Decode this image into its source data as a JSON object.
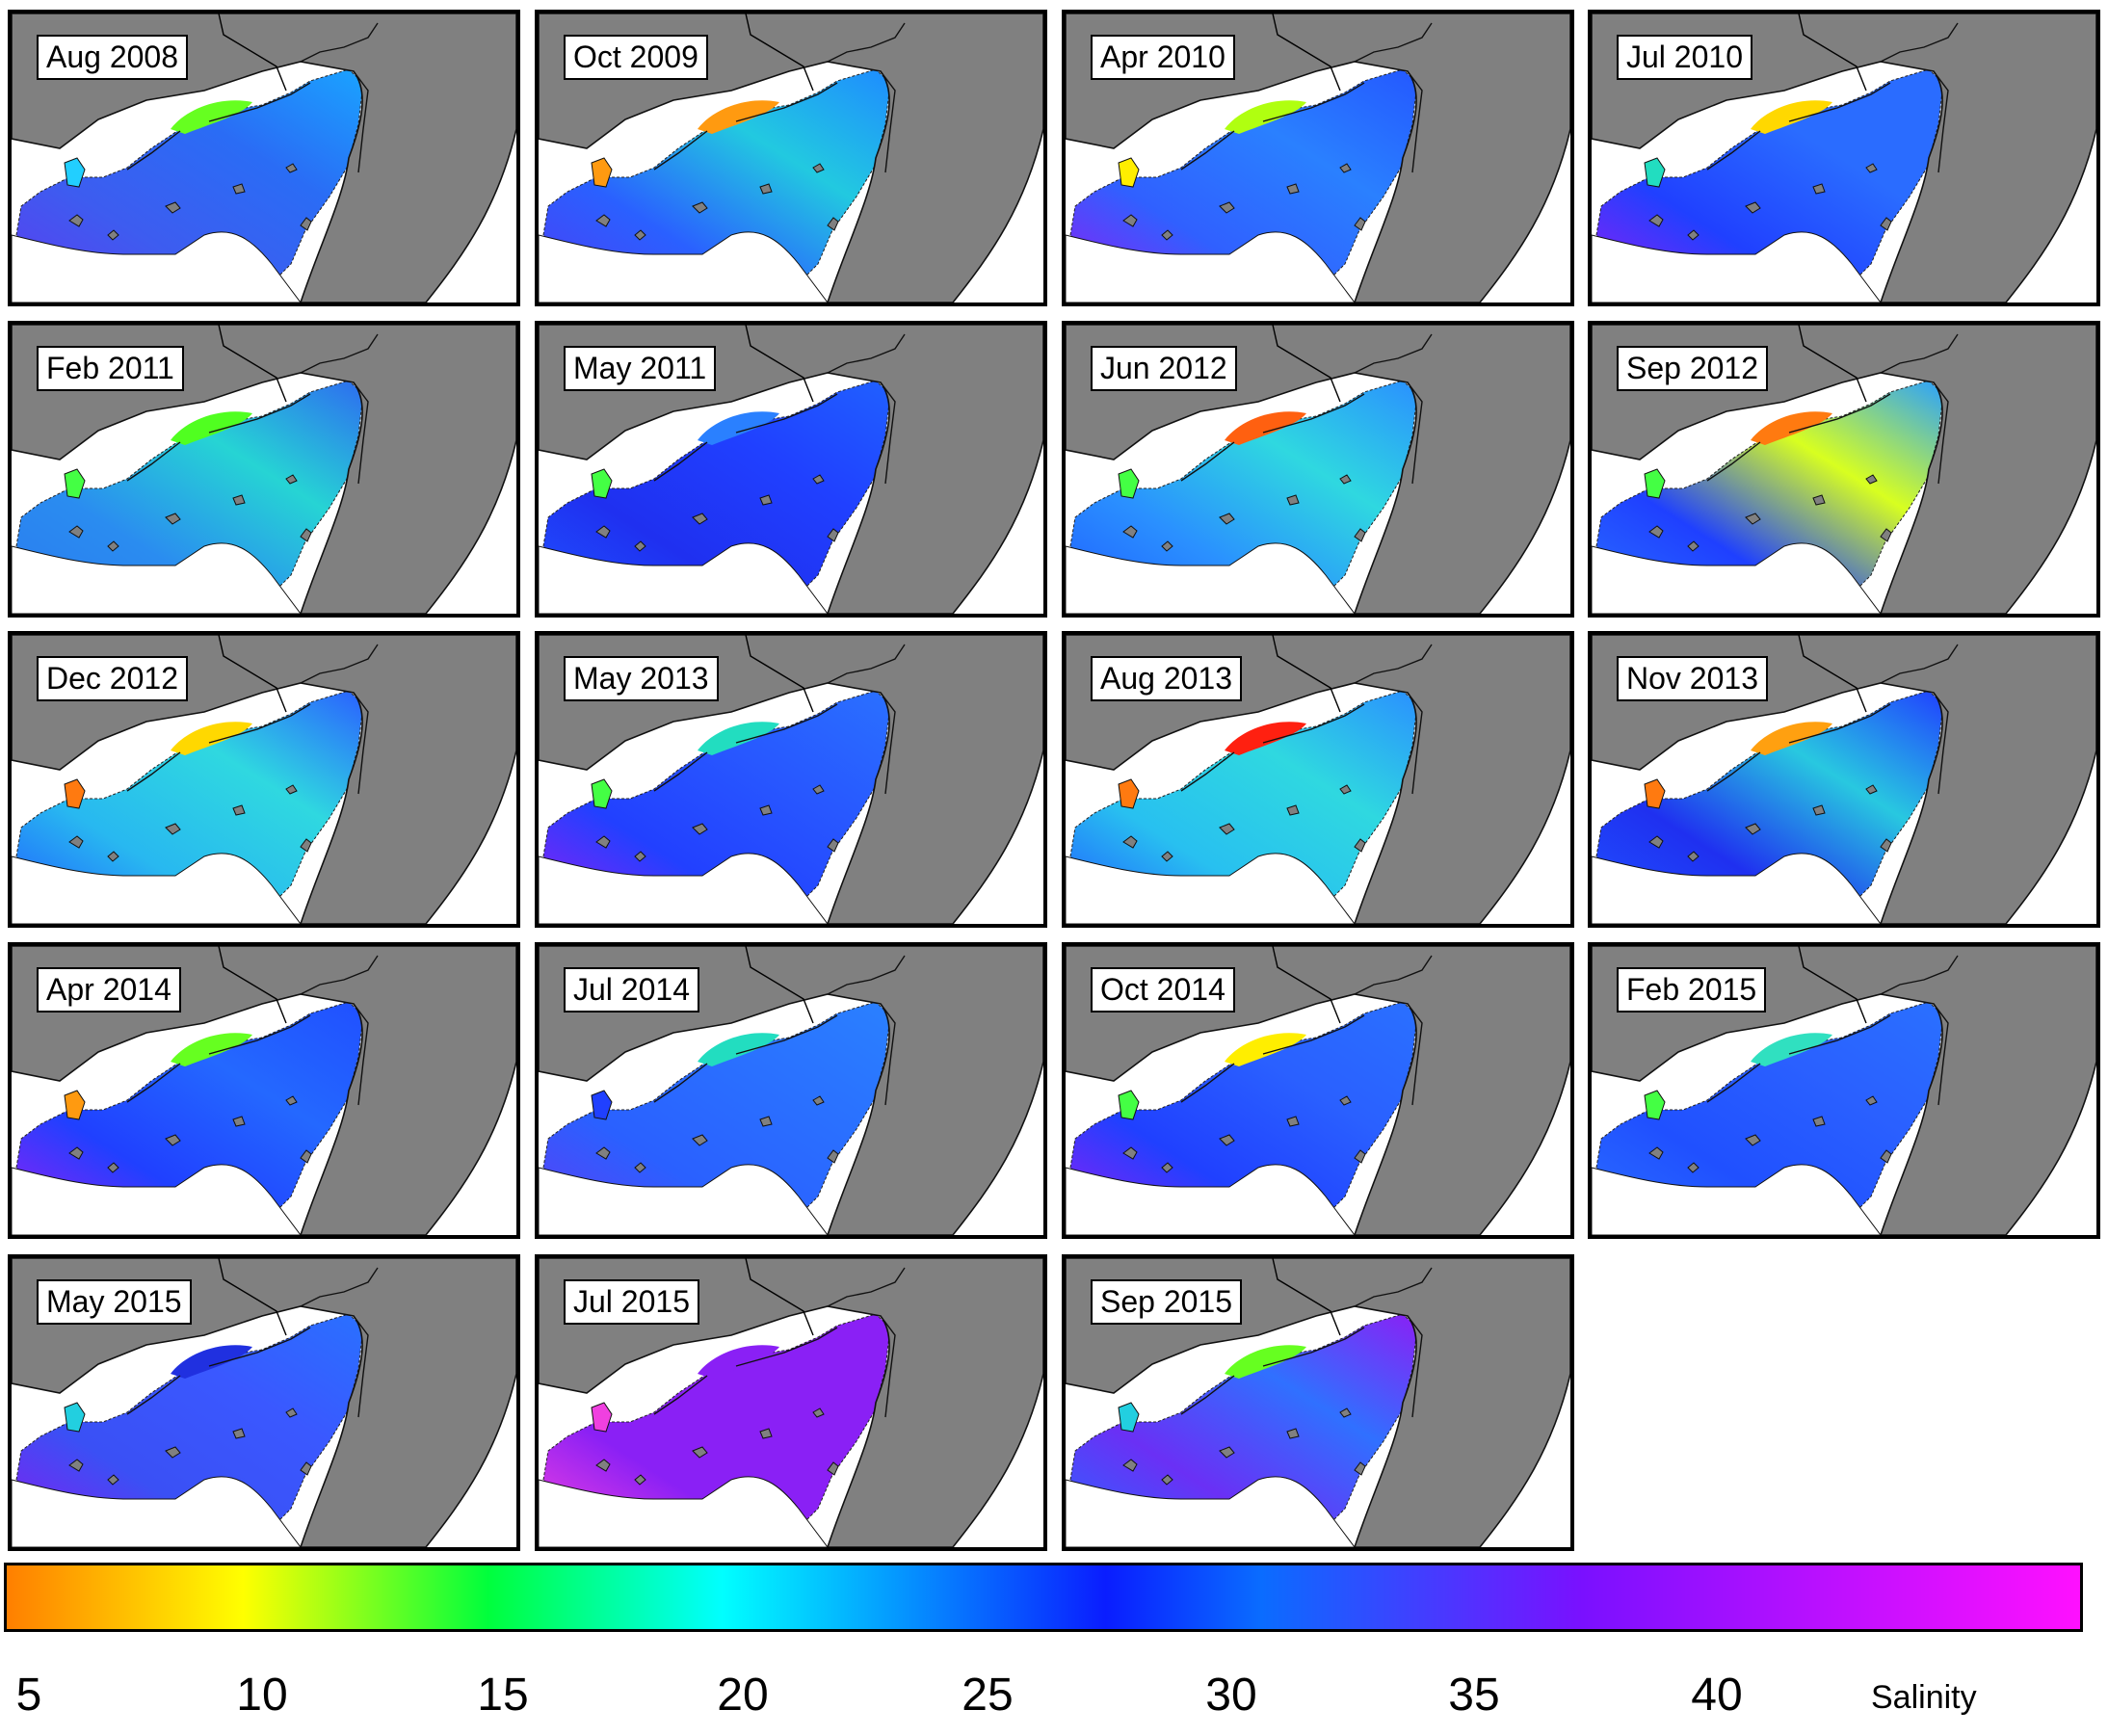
{
  "panels": [
    {
      "label": "Aug 2008",
      "c1": "#1aa3ff",
      "c2": "#2a6cf5",
      "c3": "#3d5cf0",
      "c4": "#5a3ff0",
      "hi": "#66ff20",
      "lag": "#22cfff"
    },
    {
      "label": "Oct 2009",
      "c1": "#1e8cff",
      "c2": "#22c9e0",
      "c3": "#2a60ff",
      "c4": "#4a40f5",
      "hi": "#ff9a10",
      "lag": "#ff9a10"
    },
    {
      "label": "Apr 2010",
      "c1": "#2458ff",
      "c2": "#2a80ff",
      "c3": "#3060ff",
      "c4": "#8a20f5",
      "hi": "#b0ff10",
      "lag": "#ffee00"
    },
    {
      "label": "Jul 2010",
      "c1": "#2a6cff",
      "c2": "#2a6cff",
      "c3": "#2040ff",
      "c4": "#8a20f5",
      "hi": "#ffd800",
      "lag": "#22ddc0"
    },
    {
      "label": "Feb 2011",
      "c1": "#2d6cf0",
      "c2": "#26d4d4",
      "c3": "#2a8cf0",
      "c4": "#2a7cf0",
      "hi": "#50ff20",
      "lag": "#44ff44"
    },
    {
      "label": "May 2011",
      "c1": "#2060ff",
      "c2": "#2040ff",
      "c3": "#1f30f0",
      "c4": "#2050ff",
      "hi": "#2a80ff",
      "lag": "#44ff44"
    },
    {
      "label": "Jun 2012",
      "c1": "#2a90ff",
      "c2": "#2fd8e0",
      "c3": "#2a90ff",
      "c4": "#2060ff",
      "hi": "#ff6010",
      "lag": "#44ff44"
    },
    {
      "label": "Sep 2012",
      "c1": "#2aa0ff",
      "c2": "#d8ff20",
      "c3": "#1f40ff",
      "c4": "#2a6cff",
      "hi": "#ff7a10",
      "lag": "#44ff44"
    },
    {
      "label": "Dec 2012",
      "c1": "#2a60ff",
      "c2": "#2fd8e0",
      "c3": "#28b8f0",
      "c4": "#2060ff",
      "hi": "#ffd800",
      "lag": "#ff7a10"
    },
    {
      "label": "May 2013",
      "c1": "#2a70ff",
      "c2": "#2858ff",
      "c3": "#2240ff",
      "c4": "#8a20f5",
      "hi": "#22ddc0",
      "lag": "#44ff44"
    },
    {
      "label": "Aug 2013",
      "c1": "#2a90ff",
      "c2": "#2fd8e0",
      "c3": "#28c0f0",
      "c4": "#2060ff",
      "hi": "#ff2010",
      "lag": "#ff7a10"
    },
    {
      "label": "Nov 2013",
      "c1": "#2040ff",
      "c2": "#28c8e0",
      "c3": "#1f30f0",
      "c4": "#2050ff",
      "hi": "#ffa010",
      "lag": "#ff7a10"
    },
    {
      "label": "Apr 2014",
      "c1": "#2050ff",
      "c2": "#2468ff",
      "c3": "#2040ff",
      "c4": "#9020f5",
      "hi": "#66ff20",
      "lag": "#ff9a10"
    },
    {
      "label": "Jul 2014",
      "c1": "#2a80ff",
      "c2": "#2a70ff",
      "c3": "#2a60ff",
      "c4": "#5a40f5",
      "hi": "#22ddc0",
      "lag": "#2040ff"
    },
    {
      "label": "Oct 2014",
      "c1": "#2a70ff",
      "c2": "#2a60ff",
      "c3": "#2040ff",
      "c4": "#8a20f5",
      "hi": "#ffee00",
      "lag": "#44ff44"
    },
    {
      "label": "Feb 2015",
      "c1": "#2a70ff",
      "c2": "#2a60ff",
      "c3": "#2050ff",
      "c4": "#2a6cff",
      "hi": "#30e0c0",
      "lag": "#44ff44"
    },
    {
      "label": "May 2015",
      "c1": "#2a70ff",
      "c2": "#3a58ff",
      "c3": "#3a50f5",
      "c4": "#8020f0",
      "hi": "#2030e0",
      "lag": "#22cfe0"
    },
    {
      "label": "Jul 2015",
      "c1": "#8a20f5",
      "c2": "#8a20f5",
      "c3": "#8a20f5",
      "c4": "#f040e0",
      "hi": "#8a20f5",
      "lag": "#f040e0"
    },
    {
      "label": "Sep 2015",
      "c1": "#8a20f5",
      "c2": "#3070ff",
      "c3": "#6a30f5",
      "c4": "#3060ff",
      "hi": "#66ff20",
      "lag": "#22cfe0"
    }
  ],
  "colorbar": {
    "ticks": [
      "5",
      "10",
      "15",
      "20",
      "25",
      "30",
      "35",
      "40"
    ],
    "title": "Salinity"
  }
}
